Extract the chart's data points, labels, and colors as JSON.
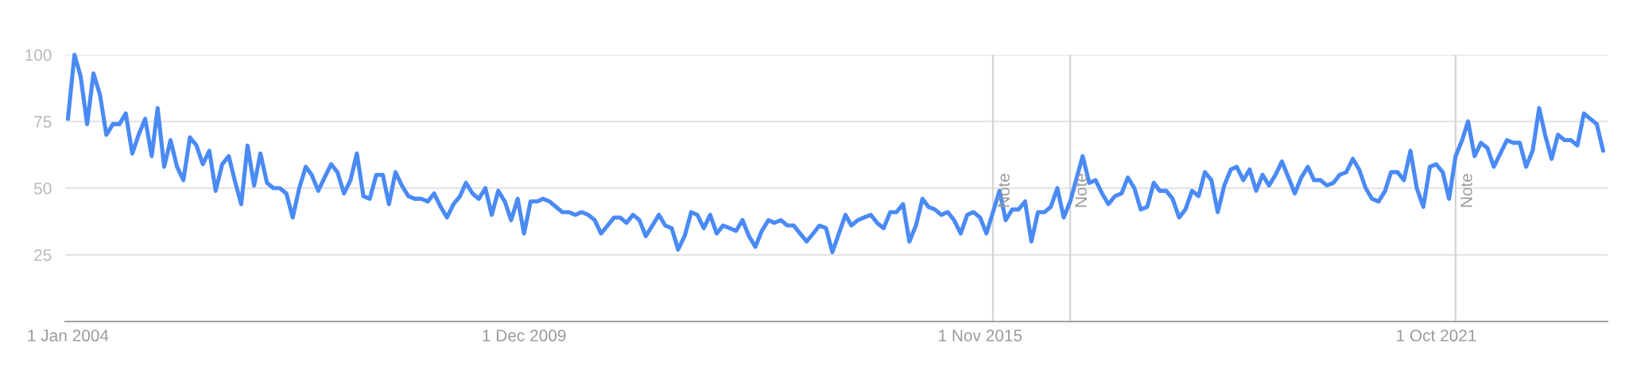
{
  "chart_data": {
    "type": "line",
    "color": "#4a8af4",
    "x": [
      "2004-01",
      "2004-02",
      "2004-03",
      "2004-04",
      "2004-05",
      "2004-06",
      "2004-07",
      "2004-08",
      "2004-09",
      "2004-10",
      "2004-11",
      "2004-12",
      "2005-01",
      "2005-02",
      "2005-03",
      "2005-04",
      "2005-05",
      "2005-06",
      "2005-07",
      "2005-08",
      "2005-09",
      "2005-10",
      "2005-11",
      "2005-12",
      "2006-01",
      "2006-02",
      "2006-03",
      "2006-04",
      "2006-05",
      "2006-06",
      "2006-07",
      "2006-08",
      "2006-09",
      "2006-10",
      "2006-11",
      "2006-12",
      "2007-01",
      "2007-02",
      "2007-03",
      "2007-04",
      "2007-05",
      "2007-06",
      "2007-07",
      "2007-08",
      "2007-09",
      "2007-10",
      "2007-11",
      "2007-12",
      "2008-01",
      "2008-02",
      "2008-03",
      "2008-04",
      "2008-05",
      "2008-06",
      "2008-07",
      "2008-08",
      "2008-09",
      "2008-10",
      "2008-11",
      "2008-12",
      "2009-01",
      "2009-02",
      "2009-03",
      "2009-04",
      "2009-05",
      "2009-06",
      "2009-07",
      "2009-08",
      "2009-09",
      "2009-10",
      "2009-11",
      "2009-12",
      "2010-01",
      "2010-02",
      "2010-03",
      "2010-04",
      "2010-05",
      "2010-06",
      "2010-07",
      "2010-08",
      "2010-09",
      "2010-10",
      "2010-11",
      "2010-12",
      "2011-01",
      "2011-02",
      "2011-03",
      "2011-04",
      "2011-05",
      "2011-06",
      "2011-07",
      "2011-08",
      "2011-09",
      "2011-10",
      "2011-11",
      "2011-12",
      "2012-01",
      "2012-02",
      "2012-03",
      "2012-04",
      "2012-05",
      "2012-06",
      "2012-07",
      "2012-08",
      "2012-09",
      "2012-10",
      "2012-11",
      "2012-12",
      "2013-01",
      "2013-02",
      "2013-03",
      "2013-04",
      "2013-05",
      "2013-06",
      "2013-07",
      "2013-08",
      "2013-09",
      "2013-10",
      "2013-11",
      "2013-12",
      "2014-01",
      "2014-02",
      "2014-03",
      "2014-04",
      "2014-05",
      "2014-06",
      "2014-07",
      "2014-08",
      "2014-09",
      "2014-10",
      "2014-11",
      "2014-12",
      "2015-01",
      "2015-02",
      "2015-03",
      "2015-04",
      "2015-05",
      "2015-06",
      "2015-07",
      "2015-08",
      "2015-09",
      "2015-10",
      "2015-11",
      "2015-12",
      "2016-01",
      "2016-02",
      "2016-03",
      "2016-04",
      "2016-05",
      "2016-06",
      "2016-07",
      "2016-08",
      "2016-09",
      "2016-10",
      "2016-11",
      "2016-12",
      "2017-01",
      "2017-02",
      "2017-03",
      "2017-04",
      "2017-05",
      "2017-06",
      "2017-07",
      "2017-08",
      "2017-09",
      "2017-10",
      "2017-11",
      "2017-12",
      "2018-01",
      "2018-02",
      "2018-03",
      "2018-04",
      "2018-05",
      "2018-06",
      "2018-07",
      "2018-08",
      "2018-09",
      "2018-10",
      "2018-11",
      "2018-12",
      "2019-01",
      "2019-02",
      "2019-03",
      "2019-04",
      "2019-05",
      "2019-06",
      "2019-07",
      "2019-08",
      "2019-09",
      "2019-10",
      "2019-11",
      "2019-12",
      "2020-01",
      "2020-02",
      "2020-03",
      "2020-04",
      "2020-05",
      "2020-06",
      "2020-07",
      "2020-08",
      "2020-09",
      "2020-10",
      "2020-11",
      "2020-12",
      "2021-01",
      "2021-02",
      "2021-03",
      "2021-04",
      "2021-05",
      "2021-06",
      "2021-07",
      "2021-08",
      "2021-09",
      "2021-10",
      "2021-11",
      "2021-12",
      "2022-01",
      "2022-02",
      "2022-03",
      "2022-04",
      "2022-05",
      "2022-06",
      "2022-07",
      "2022-08",
      "2022-09",
      "2022-10",
      "2022-11",
      "2022-12",
      "2023-01",
      "2023-02",
      "2023-03",
      "2023-04",
      "2023-05",
      "2023-06",
      "2023-07",
      "2023-08",
      "2023-09",
      "2023-10",
      "2023-11",
      "2023-12"
    ],
    "values": [
      76,
      100,
      92,
      74,
      93,
      85,
      70,
      74,
      74,
      78,
      63,
      70,
      76,
      62,
      80,
      58,
      68,
      58,
      53,
      69,
      66,
      59,
      64,
      49,
      59,
      62,
      53,
      44,
      66,
      51,
      63,
      52,
      50,
      50,
      48,
      39,
      50,
      58,
      55,
      49,
      54,
      59,
      56,
      48,
      53,
      63,
      47,
      46,
      55,
      55,
      44,
      56,
      51,
      47,
      46,
      46,
      45,
      48,
      43,
      39,
      44,
      47,
      52,
      48,
      46,
      50,
      40,
      49,
      45,
      38,
      46,
      33,
      45,
      45,
      46,
      45,
      43,
      41,
      41,
      40,
      41,
      40,
      38,
      33,
      36,
      39,
      39,
      37,
      40,
      38,
      32,
      36,
      40,
      36,
      35,
      27,
      32,
      41,
      40,
      35,
      40,
      33,
      36,
      35,
      34,
      38,
      32,
      28,
      34,
      38,
      37,
      38,
      36,
      36,
      33,
      30,
      33,
      36,
      35,
      26,
      33,
      40,
      36,
      38,
      39,
      40,
      37,
      35,
      41,
      41,
      44,
      30,
      36,
      46,
      43,
      42,
      40,
      41,
      38,
      33,
      40,
      41,
      39,
      33,
      41,
      49,
      38,
      42,
      42,
      45,
      30,
      41,
      41,
      43,
      50,
      39,
      45,
      54,
      62,
      52,
      53,
      48,
      44,
      47,
      48,
      54,
      50,
      42,
      43,
      52,
      49,
      49,
      46,
      39,
      42,
      49,
      47,
      56,
      53,
      41,
      51,
      57,
      58,
      53,
      57,
      49,
      55,
      51,
      55,
      60,
      54,
      48,
      54,
      58,
      53,
      53,
      51,
      52,
      55,
      56,
      61,
      57,
      50,
      46,
      45,
      49,
      56,
      56,
      53,
      64,
      50,
      43,
      58,
      59,
      56,
      46,
      62,
      68,
      75,
      62,
      67,
      65,
      58,
      63,
      68,
      67,
      67,
      58,
      64,
      80,
      70,
      61,
      70,
      68,
      68,
      66,
      78,
      76,
      74,
      64
    ],
    "xlim": [
      "2003-12-19",
      "2023-12-22"
    ],
    "xticks": [
      {
        "value": "2004-01-01",
        "label": "1 Jan 2004"
      },
      {
        "value": "2009-12-01",
        "label": "1 Dec 2009"
      },
      {
        "value": "2015-11-01",
        "label": "1 Nov 2015"
      },
      {
        "value": "2021-10-01",
        "label": "1 Oct 2021"
      }
    ],
    "ylim": [
      0,
      100
    ],
    "yticks": [
      25,
      50,
      75,
      100
    ],
    "grid": "y",
    "ref_lines": [
      {
        "axis": "x",
        "value": "2016-01-01",
        "label": "Note",
        "color": "#d4d4d4"
      },
      {
        "axis": "x",
        "value": "2017-01-01",
        "label": "Note",
        "color": "#d4d4d4"
      },
      {
        "axis": "x",
        "value": "2022-01-01",
        "label": "Note",
        "color": "#d4d4d4"
      }
    ]
  }
}
